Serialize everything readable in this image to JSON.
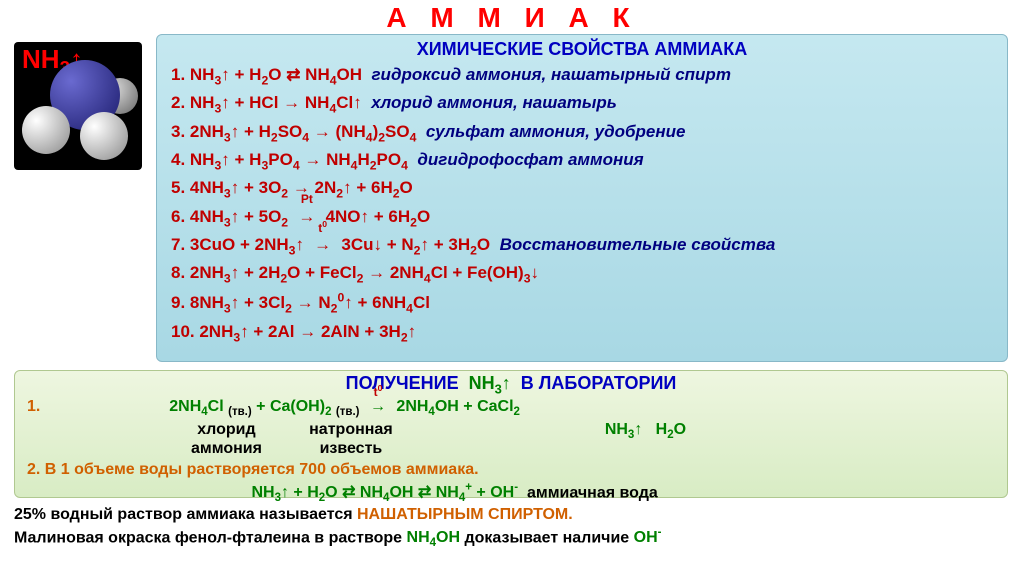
{
  "colors": {
    "title": "#ff0000",
    "panel1_bg": "#bde4ee",
    "panel2_bg": "#e4f0d4",
    "heading_blue": "#0000c0",
    "formula_red": "#c00000",
    "note_navy": "#000080",
    "orange": "#d06000",
    "green": "#008000",
    "black": "#000000"
  },
  "title": "А М М И А К",
  "molecule_label": "NH₃↑",
  "section1_title": "ХИМИЧЕСКИЕ СВОЙСТВА АММИАКА",
  "reactions": [
    {
      "num": "1.",
      "eq": "NH₃↑ + H₂O ⇄ NH₄OH",
      "note": "гидроксид аммония, нашатырный спирт"
    },
    {
      "num": "2.",
      "eq": "NH₃↑ + HCl → NH₄Cl↑",
      "note": "хлорид аммония, нашатырь"
    },
    {
      "num": "3.",
      "eq": "2NH₃↑ + H₂SO₄ → (NH₄)₂SO₄",
      "note": "сульфат аммония, удобрение"
    },
    {
      "num": "4.",
      "eq": "NH₃↑ + H₃PO₄ → NH₄H₂PO₄",
      "note": "дигидрофосфат аммония"
    },
    {
      "num": "5.",
      "eq": "4NH₃↑ + 3O₂ → 2N₂↑ + 6H₂O",
      "note": ""
    },
    {
      "num": "6.",
      "eq": "4NH₃↑ + 5O₂ —Pt→ 4NO↑ + 6H₂O",
      "note": "",
      "cat": "Pt"
    },
    {
      "num": "7.",
      "eq": "3CuO + 2NH₃↑ —t°→ 3Cu↓ + N₂↑ + 3H₂O",
      "note": "Восстановительные свойства",
      "cat": "t°"
    },
    {
      "num": "8.",
      "eq": "2NH₃↑ + 2H₂O + FeCl₂ → 2NH₄Cl + Fe(OH)₃↓",
      "note": ""
    },
    {
      "num": "9.",
      "eq": "8NH₃↑ + 3Cl₂ → N₂⁰↑ + 6NH₄Cl",
      "note": ""
    },
    {
      "num": "10.",
      "eq": "2NH₃↑ + 2Al → 2AlN + 3H₂↑",
      "note": ""
    }
  ],
  "section2_title": "ПОЛУЧЕНИЕ  NH₃↑  В ЛАБОРАТОРИИ",
  "lab": {
    "num1": "1.",
    "eq1_left_a": "2NH₄Cl",
    "eq1_left_a_sub": "(тв.)",
    "eq1_plus": " + ",
    "eq1_left_b": "Ca(OH)₂",
    "eq1_left_b_sub": "(тв.)",
    "eq1_cat": "t°",
    "eq1_right": "2NH₄OH + CaCl₂",
    "label_a": "хлорид",
    "label_a2": "аммония",
    "label_b": "натронная",
    "label_b2": "известь",
    "decomp_a": "NH₃↑",
    "decomp_b": "H₂O",
    "num2": "2.",
    "line2": "В 1 объеме воды растворяется 700 объемов аммиака.",
    "eq2": "NH₃↑ + H₂O ⇄ NH₄OH ⇄ NH₄⁺ + OH⁻",
    "eq2_note": "аммиачная вода"
  },
  "footer": {
    "l1a": "25% водный раствор аммиака называется ",
    "l1b": "НАШАТЫРНЫМ СПИРТОМ.",
    "l2a": "Малиновая окраска фенол-фталеина в растворе ",
    "l2b": "NH₄OH",
    "l2c": " доказывает наличие ",
    "l2d": "OH⁻"
  }
}
